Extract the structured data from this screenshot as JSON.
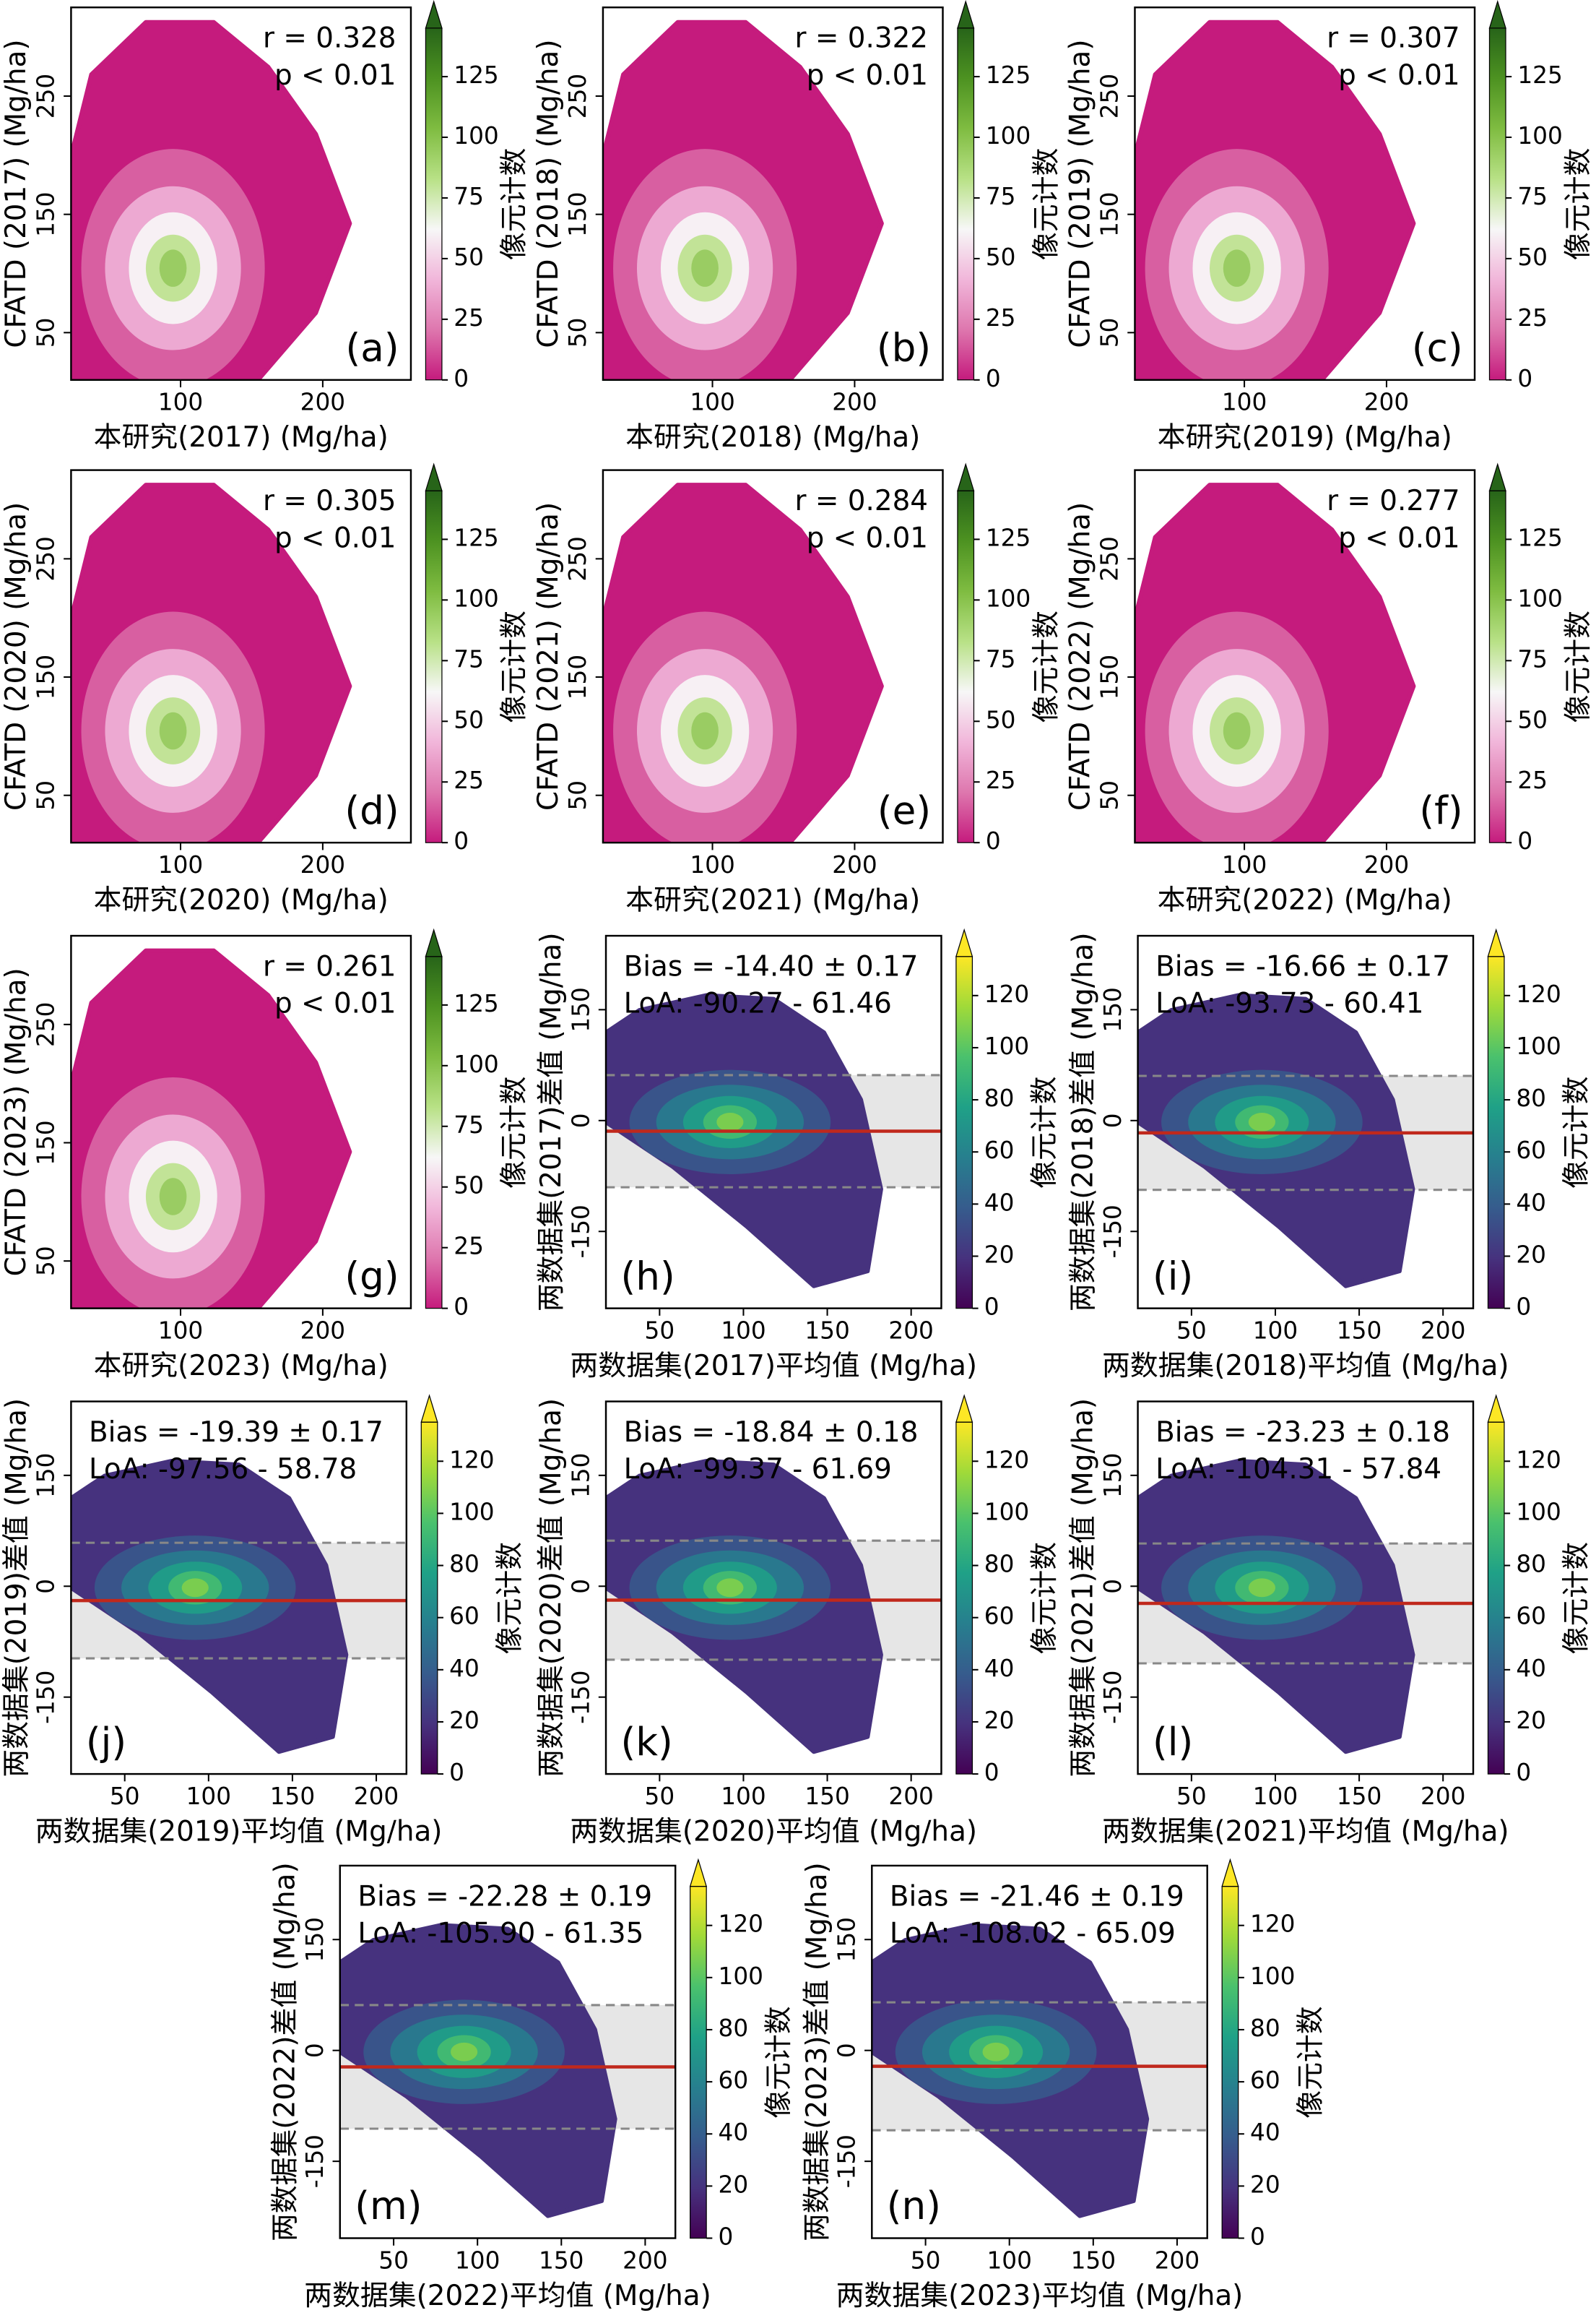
{
  "chart_data": [
    {
      "type": "density_scatter",
      "panel_label": "(a)",
      "xlabel": "本研究(2017) (Mg/ha)",
      "ylabel": "CFATD (2017) (Mg/ha)",
      "annotations": [
        "r = 0.328",
        "p < 0.01"
      ],
      "xlim": [
        23,
        262
      ],
      "ylim": [
        10,
        325
      ],
      "xticks": [
        100,
        200
      ],
      "yticks": [
        50,
        150,
        250
      ],
      "colorbar": {
        "label": "像元计数",
        "cmap": "PiYG",
        "lim": [
          0,
          145
        ],
        "ticks": [
          0,
          25,
          50,
          75,
          100,
          125
        ],
        "extend": "max"
      }
    },
    {
      "type": "density_scatter",
      "panel_label": "(b)",
      "xlabel": "本研究(2018) (Mg/ha)",
      "ylabel": "CFATD (2018) (Mg/ha)",
      "annotations": [
        "r = 0.322",
        "p < 0.01"
      ],
      "xlim": [
        23,
        262
      ],
      "ylim": [
        10,
        325
      ],
      "xticks": [
        100,
        200
      ],
      "yticks": [
        50,
        150,
        250
      ],
      "colorbar": {
        "label": "像元计数",
        "cmap": "PiYG",
        "lim": [
          0,
          145
        ],
        "ticks": [
          0,
          25,
          50,
          75,
          100,
          125
        ],
        "extend": "max"
      }
    },
    {
      "type": "density_scatter",
      "panel_label": "(c)",
      "xlabel": "本研究(2019) (Mg/ha)",
      "ylabel": "CFATD (2019) (Mg/ha)",
      "annotations": [
        "r = 0.307",
        "p < 0.01"
      ],
      "xlim": [
        23,
        262
      ],
      "ylim": [
        10,
        325
      ],
      "xticks": [
        100,
        200
      ],
      "yticks": [
        50,
        150,
        250
      ],
      "colorbar": {
        "label": "像元计数",
        "cmap": "PiYG",
        "lim": [
          0,
          145
        ],
        "ticks": [
          0,
          25,
          50,
          75,
          100,
          125
        ],
        "extend": "max"
      }
    },
    {
      "type": "density_scatter",
      "panel_label": "(d)",
      "xlabel": "本研究(2020) (Mg/ha)",
      "ylabel": "CFATD (2020) (Mg/ha)",
      "annotations": [
        "r = 0.305",
        "p < 0.01"
      ],
      "xlim": [
        23,
        262
      ],
      "ylim": [
        10,
        325
      ],
      "xticks": [
        100,
        200
      ],
      "yticks": [
        50,
        150,
        250
      ],
      "colorbar": {
        "label": "像元计数",
        "cmap": "PiYG",
        "lim": [
          0,
          145
        ],
        "ticks": [
          0,
          25,
          50,
          75,
          100,
          125
        ],
        "extend": "max"
      }
    },
    {
      "type": "density_scatter",
      "panel_label": "(e)",
      "xlabel": "本研究(2021) (Mg/ha)",
      "ylabel": "CFATD (2021) (Mg/ha)",
      "annotations": [
        "r = 0.284",
        "p < 0.01"
      ],
      "xlim": [
        23,
        262
      ],
      "ylim": [
        10,
        325
      ],
      "xticks": [
        100,
        200
      ],
      "yticks": [
        50,
        150,
        250
      ],
      "colorbar": {
        "label": "像元计数",
        "cmap": "PiYG",
        "lim": [
          0,
          145
        ],
        "ticks": [
          0,
          25,
          50,
          75,
          100,
          125
        ],
        "extend": "max"
      }
    },
    {
      "type": "density_scatter",
      "panel_label": "(f)",
      "xlabel": "本研究(2022) (Mg/ha)",
      "ylabel": "CFATD (2022) (Mg/ha)",
      "annotations": [
        "r = 0.277",
        "p < 0.01"
      ],
      "xlim": [
        23,
        262
      ],
      "ylim": [
        10,
        325
      ],
      "xticks": [
        100,
        200
      ],
      "yticks": [
        50,
        150,
        250
      ],
      "colorbar": {
        "label": "像元计数",
        "cmap": "PiYG",
        "lim": [
          0,
          145
        ],
        "ticks": [
          0,
          25,
          50,
          75,
          100,
          125
        ],
        "extend": "max"
      }
    },
    {
      "type": "density_scatter",
      "panel_label": "(g)",
      "xlabel": "本研究(2023) (Mg/ha)",
      "ylabel": "CFATD (2023) (Mg/ha)",
      "annotations": [
        "r = 0.261",
        "p < 0.01"
      ],
      "xlim": [
        23,
        262
      ],
      "ylim": [
        10,
        325
      ],
      "xticks": [
        100,
        200
      ],
      "yticks": [
        50,
        150,
        250
      ],
      "colorbar": {
        "label": "像元计数",
        "cmap": "PiYG",
        "lim": [
          0,
          145
        ],
        "ticks": [
          0,
          25,
          50,
          75,
          100,
          125
        ],
        "extend": "max"
      }
    },
    {
      "type": "bland_altman",
      "panel_label": "(h)",
      "xlabel": "两数据集(2017)平均值 (Mg/ha)",
      "ylabel": "两数据集(2017)差值 (Mg/ha)",
      "annotations": [
        "Bias = -14.40 ± 0.17",
        "LoA: -90.27 - 61.46"
      ],
      "bias": -14.4,
      "bias_se": 0.17,
      "loa": [
        -90.27,
        61.46
      ],
      "bias_color": "#c0281c",
      "loa_color": "#888888",
      "band_color": "#e6e6e6",
      "xlim": [
        18,
        218
      ],
      "ylim": [
        -254,
        250
      ],
      "xticks": [
        50,
        100,
        150,
        200
      ],
      "yticks": [
        -150,
        0,
        150
      ],
      "colorbar": {
        "label": "像元计数",
        "cmap": "viridis",
        "lim": [
          0,
          135
        ],
        "ticks": [
          0,
          20,
          40,
          60,
          80,
          100,
          120
        ],
        "extend": "max"
      }
    },
    {
      "type": "bland_altman",
      "panel_label": "(i)",
      "xlabel": "两数据集(2018)平均值 (Mg/ha)",
      "ylabel": "两数据集(2018)差值 (Mg/ha)",
      "annotations": [
        "Bias = -16.66 ± 0.17",
        "LoA: -93.73 - 60.41"
      ],
      "bias": -16.66,
      "bias_se": 0.17,
      "loa": [
        -93.73,
        60.41
      ],
      "bias_color": "#c0281c",
      "loa_color": "#888888",
      "band_color": "#e6e6e6",
      "xlim": [
        18,
        218
      ],
      "ylim": [
        -254,
        250
      ],
      "xticks": [
        50,
        100,
        150,
        200
      ],
      "yticks": [
        -150,
        0,
        150
      ],
      "colorbar": {
        "label": "像元计数",
        "cmap": "viridis",
        "lim": [
          0,
          135
        ],
        "ticks": [
          0,
          20,
          40,
          60,
          80,
          100,
          120
        ],
        "extend": "max"
      }
    },
    {
      "type": "bland_altman",
      "panel_label": "(j)",
      "xlabel": "两数据集(2019)平均值 (Mg/ha)",
      "ylabel": "两数据集(2019)差值 (Mg/ha)",
      "annotations": [
        "Bias = -19.39 ± 0.17",
        "LoA: -97.56 - 58.78"
      ],
      "bias": -19.39,
      "bias_se": 0.17,
      "loa": [
        -97.56,
        58.78
      ],
      "bias_color": "#c0281c",
      "loa_color": "#888888",
      "band_color": "#e6e6e6",
      "xlim": [
        18,
        218
      ],
      "ylim": [
        -254,
        250
      ],
      "xticks": [
        50,
        100,
        150,
        200
      ],
      "yticks": [
        -150,
        0,
        150
      ],
      "colorbar": {
        "label": "像元计数",
        "cmap": "viridis",
        "lim": [
          0,
          135
        ],
        "ticks": [
          0,
          20,
          40,
          60,
          80,
          100,
          120
        ],
        "extend": "max"
      }
    },
    {
      "type": "bland_altman",
      "panel_label": "(k)",
      "xlabel": "两数据集(2020)平均值 (Mg/ha)",
      "ylabel": "两数据集(2020)差值 (Mg/ha)",
      "annotations": [
        "Bias = -18.84 ± 0.18",
        "LoA: -99.37 - 61.69"
      ],
      "bias": -18.84,
      "bias_se": 0.18,
      "loa": [
        -99.37,
        61.69
      ],
      "bias_color": "#c0281c",
      "loa_color": "#888888",
      "band_color": "#e6e6e6",
      "xlim": [
        18,
        218
      ],
      "ylim": [
        -254,
        250
      ],
      "xticks": [
        50,
        100,
        150,
        200
      ],
      "yticks": [
        -150,
        0,
        150
      ],
      "colorbar": {
        "label": "像元计数",
        "cmap": "viridis",
        "lim": [
          0,
          135
        ],
        "ticks": [
          0,
          20,
          40,
          60,
          80,
          100,
          120
        ],
        "extend": "max"
      }
    },
    {
      "type": "bland_altman",
      "panel_label": "(l)",
      "xlabel": "两数据集(2021)平均值 (Mg/ha)",
      "ylabel": "两数据集(2021)差值 (Mg/ha)",
      "annotations": [
        "Bias = -23.23 ± 0.18",
        "LoA: -104.31 - 57.84"
      ],
      "bias": -23.23,
      "bias_se": 0.18,
      "loa": [
        -104.31,
        57.84
      ],
      "bias_color": "#c0281c",
      "loa_color": "#888888",
      "band_color": "#e6e6e6",
      "xlim": [
        18,
        218
      ],
      "ylim": [
        -254,
        250
      ],
      "xticks": [
        50,
        100,
        150,
        200
      ],
      "yticks": [
        -150,
        0,
        150
      ],
      "colorbar": {
        "label": "像元计数",
        "cmap": "viridis",
        "lim": [
          0,
          135
        ],
        "ticks": [
          0,
          20,
          40,
          60,
          80,
          100,
          120
        ],
        "extend": "max"
      }
    },
    {
      "type": "bland_altman",
      "panel_label": "(m)",
      "xlabel": "两数据集(2022)平均值 (Mg/ha)",
      "ylabel": "两数据集(2022)差值 (Mg/ha)",
      "annotations": [
        "Bias = -22.28 ± 0.19",
        "LoA: -105.90 - 61.35"
      ],
      "bias": -22.28,
      "bias_se": 0.19,
      "loa": [
        -105.9,
        61.35
      ],
      "bias_color": "#c0281c",
      "loa_color": "#888888",
      "band_color": "#e6e6e6",
      "xlim": [
        18,
        218
      ],
      "ylim": [
        -254,
        250
      ],
      "xticks": [
        50,
        100,
        150,
        200
      ],
      "yticks": [
        -150,
        0,
        150
      ],
      "colorbar": {
        "label": "像元计数",
        "cmap": "viridis",
        "lim": [
          0,
          135
        ],
        "ticks": [
          0,
          20,
          40,
          60,
          80,
          100,
          120
        ],
        "extend": "max"
      }
    },
    {
      "type": "bland_altman",
      "panel_label": "(n)",
      "xlabel": "两数据集(2023)平均值 (Mg/ha)",
      "ylabel": "两数据集(2023)差值 (Mg/ha)",
      "annotations": [
        "Bias = -21.46 ± 0.19",
        "LoA: -108.02 - 65.09"
      ],
      "bias": -21.46,
      "bias_se": 0.19,
      "loa": [
        -108.02,
        65.09
      ],
      "bias_color": "#c0281c",
      "loa_color": "#888888",
      "band_color": "#e6e6e6",
      "xlim": [
        18,
        218
      ],
      "ylim": [
        -254,
        250
      ],
      "xticks": [
        50,
        100,
        150,
        200
      ],
      "yticks": [
        -150,
        0,
        150
      ],
      "colorbar": {
        "label": "像元计数",
        "cmap": "viridis",
        "lim": [
          0,
          135
        ],
        "ticks": [
          0,
          20,
          40,
          60,
          80,
          100,
          120
        ],
        "extend": "max"
      }
    }
  ]
}
